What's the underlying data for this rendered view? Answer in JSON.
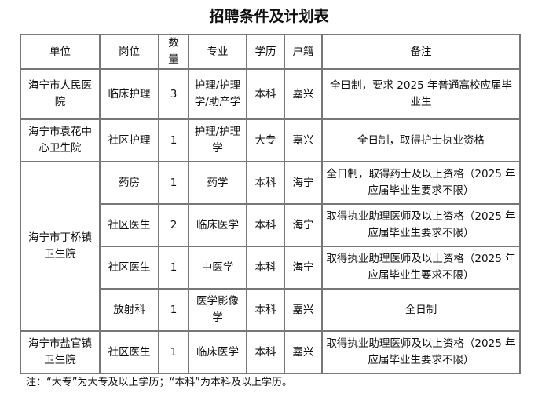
{
  "title": "招聘条件及计划表",
  "headers": [
    "单位",
    "岗位",
    "数量",
    "专业",
    "学历",
    "户籍",
    "备注"
  ],
  "rows": [
    {
      "unit": "海宁市人民医院",
      "post": "临床护理",
      "count": "3",
      "major": "护理/护理学/助产学",
      "edu": "本科",
      "hukou": "嘉兴",
      "remark": "全日制，要求 2025 年普通高校应届毕业生"
    },
    {
      "unit": "海宁市袁花中心卫生院",
      "post": "社区护理",
      "count": "1",
      "major": "护理/护理学",
      "edu": "大专",
      "hukou": "嘉兴",
      "remark": "全日制，取得护士执业资格"
    },
    {
      "unit": "海宁市丁桥镇卫生院",
      "post": "药房",
      "count": "1",
      "major": "药学",
      "edu": "本科",
      "hukou": "海宁",
      "remark": "全日制，取得药士及以上资格（2025 年应届毕业生要求不限）"
    },
    {
      "post": "社区医生",
      "count": "2",
      "major": "临床医学",
      "edu": "本科",
      "hukou": "海宁",
      "remark": "取得执业助理医师及以上资格（2025 年应届毕业生要求不限）"
    },
    {
      "post": "社区医生",
      "count": "1",
      "major": "中医学",
      "edu": "本科",
      "hukou": "海宁",
      "remark": "取得执业助理医师及以上资格（2025 年应届毕业生要求不限）"
    },
    {
      "post": "放射科",
      "count": "1",
      "major": "医学影像学",
      "edu": "本科",
      "hukou": "嘉兴",
      "remark": "全日制"
    },
    {
      "unit": "海宁市盐官镇卫生院",
      "post": "社区医生",
      "count": "1",
      "major": "临床医学",
      "edu": "本科",
      "hukou": "嘉兴",
      "remark": "取得执业助理医师及以上资格（2025 年应届毕业生要求不限）"
    }
  ],
  "note": "注：“大专”为大专及以上学历；“本科”为本科及以上学历。"
}
